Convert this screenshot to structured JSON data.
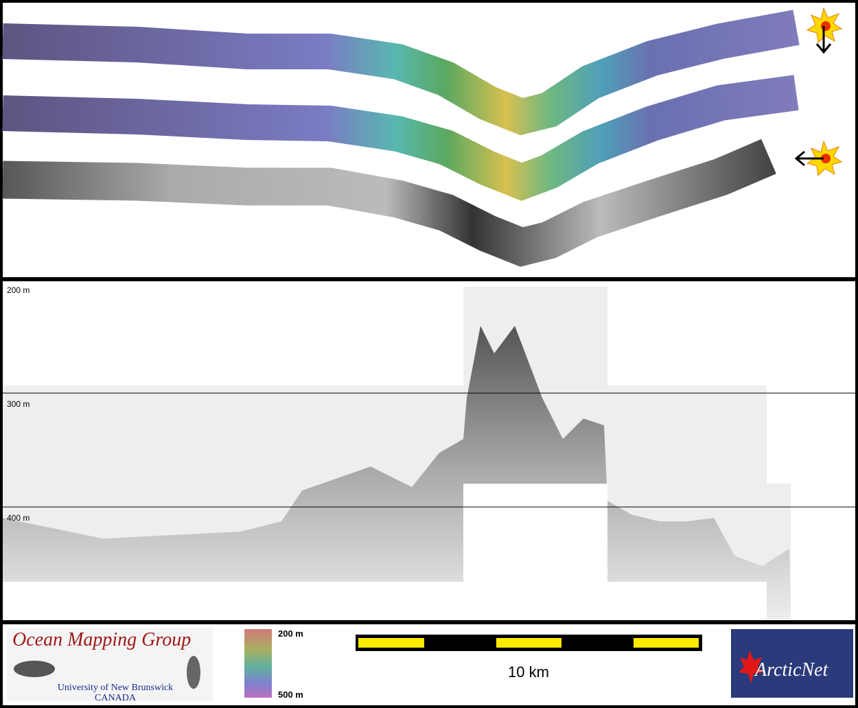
{
  "profile": {
    "depth_labels": [
      "200 m",
      "300 m",
      "400 m"
    ]
  },
  "footer": {
    "logo_title": "Ocean Mapping Group",
    "logo_university": "University of New Brunswick",
    "logo_country": "CANADA",
    "color_scale_top": "200 m",
    "color_scale_bottom": "500 m",
    "scale_bar_label": "10 km",
    "partner_logo": "ArcticNet"
  }
}
